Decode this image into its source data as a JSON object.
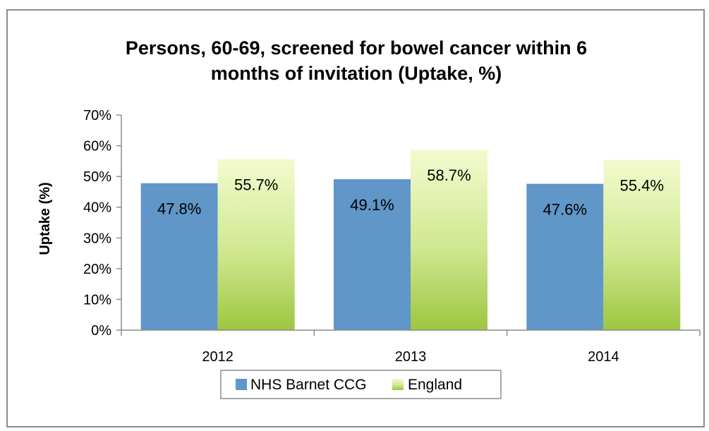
{
  "chart_data": {
    "type": "bar",
    "title_lines": [
      "Persons, 60-69, screened for bowel cancer within 6",
      "months of invitation (Uptake, %)"
    ],
    "xlabel": "",
    "ylabel": "Uptake (%)",
    "categories": [
      "2012",
      "2013",
      "2014"
    ],
    "ylim": [
      0,
      70
    ],
    "yticks": [
      0,
      10,
      20,
      30,
      40,
      50,
      60,
      70
    ],
    "ytick_labels": [
      "0%",
      "10%",
      "20%",
      "30%",
      "40%",
      "50%",
      "60%",
      "70%"
    ],
    "series": [
      {
        "name": "NHS Barnet CCG",
        "values": [
          47.8,
          49.1,
          47.6
        ],
        "labels": [
          "47.8%",
          "49.1%",
          "47.6%"
        ],
        "color": "#6096c8"
      },
      {
        "name": "England",
        "values": [
          55.7,
          58.7,
          55.4
        ],
        "labels": [
          "55.7%",
          "58.7%",
          "55.4%"
        ],
        "color": "#a8cf54"
      }
    ],
    "grid": false,
    "legend_position": "bottom"
  }
}
